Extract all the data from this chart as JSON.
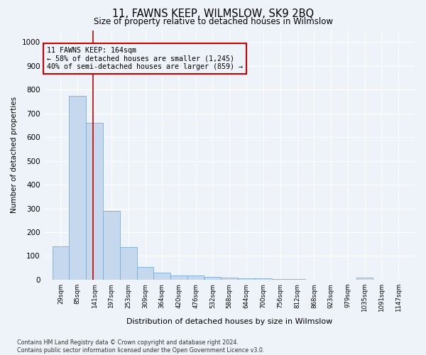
{
  "title": "11, FAWNS KEEP, WILMSLOW, SK9 2BQ",
  "subtitle": "Size of property relative to detached houses in Wilmslow",
  "xlabel": "Distribution of detached houses by size in Wilmslow",
  "ylabel": "Number of detached properties",
  "bar_color": "#c5d8ee",
  "bar_edge_color": "#7aafd4",
  "background_color": "#eef2f9",
  "grid_color": "#ffffff",
  "annotation_box_color": "#cc0000",
  "property_line_color": "#cc0000",
  "property_value": 164,
  "annotation_text_line1": "11 FAWNS KEEP: 164sqm",
  "annotation_text_line2": "← 58% of detached houses are smaller (1,245)",
  "annotation_text_line3": "40% of semi-detached houses are larger (859) →",
  "categories": [
    "29sqm",
    "85sqm",
    "141sqm",
    "197sqm",
    "253sqm",
    "309sqm",
    "364sqm",
    "420sqm",
    "476sqm",
    "532sqm",
    "588sqm",
    "644sqm",
    "700sqm",
    "756sqm",
    "812sqm",
    "868sqm",
    "923sqm",
    "979sqm",
    "1035sqm",
    "1091sqm",
    "1147sqm"
  ],
  "bin_starts": [
    29,
    85,
    141,
    197,
    253,
    309,
    364,
    420,
    476,
    532,
    588,
    644,
    700,
    756,
    812,
    868,
    923,
    979,
    1035,
    1091,
    1147
  ],
  "bin_width": 56,
  "values": [
    140,
    775,
    660,
    290,
    138,
    53,
    30,
    18,
    18,
    11,
    8,
    6,
    5,
    2,
    2,
    0,
    0,
    0,
    8,
    0,
    0
  ],
  "ylim": [
    0,
    1050
  ],
  "yticks": [
    0,
    100,
    200,
    300,
    400,
    500,
    600,
    700,
    800,
    900,
    1000
  ],
  "footnote_line1": "Contains HM Land Registry data © Crown copyright and database right 2024.",
  "footnote_line2": "Contains public sector information licensed under the Open Government Licence v3.0."
}
